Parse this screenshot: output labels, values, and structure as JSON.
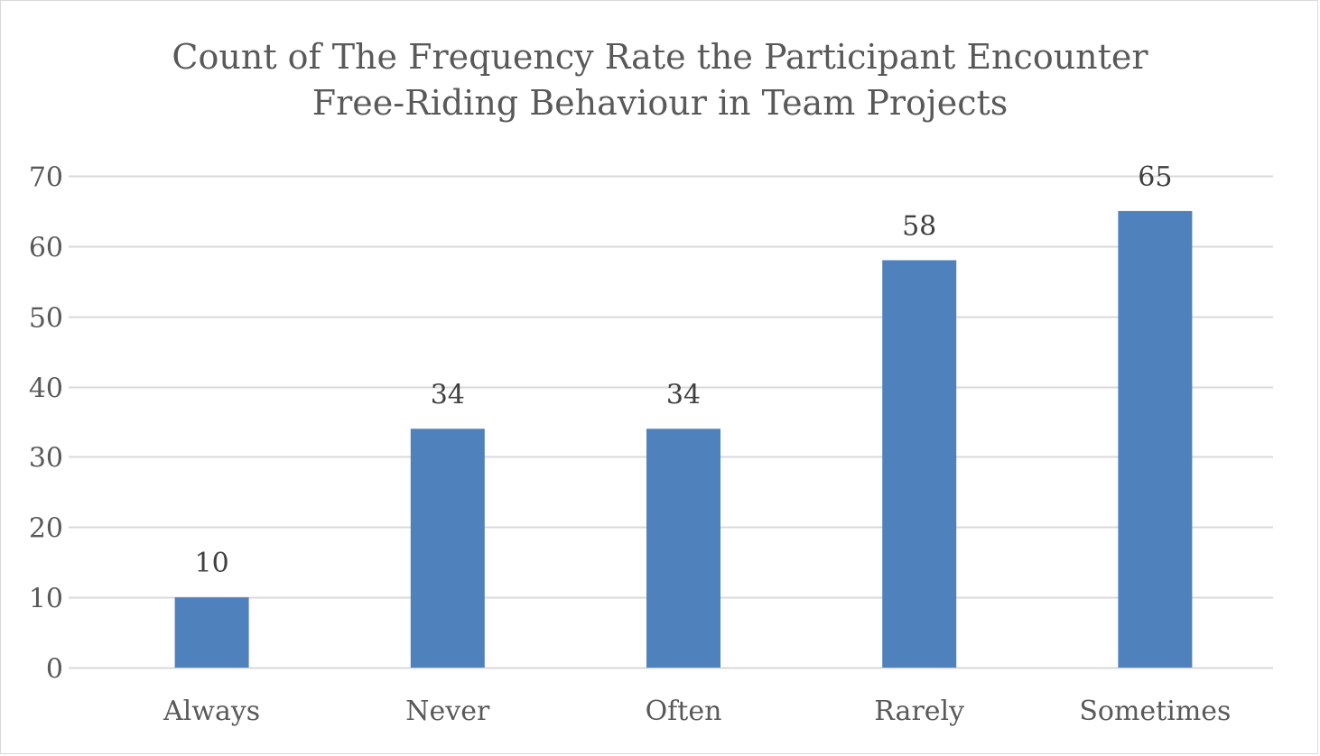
{
  "chart_data": {
    "type": "bar",
    "title": "Count of The Frequency Rate the Participant Encounter Free-Riding Behaviour in Team Projects",
    "title_lines": [
      "Count of The Frequency Rate the Participant Encounter",
      "Free-Riding Behaviour in Team Projects"
    ],
    "categories": [
      "Always",
      "Never",
      "Often",
      "Rarely",
      "Sometimes"
    ],
    "values": [
      10,
      34,
      34,
      58,
      65
    ],
    "data_labels": [
      "10",
      "34",
      "34",
      "58",
      "65"
    ],
    "ylim": [
      0,
      70
    ],
    "y_ticks": [
      0,
      10,
      20,
      30,
      40,
      50,
      60,
      70
    ],
    "y_tick_labels": [
      "0",
      "10",
      "20",
      "30",
      "40",
      "50",
      "60",
      "70"
    ],
    "grid": true,
    "legend": "none",
    "xlabel": "",
    "ylabel": "",
    "colors": {
      "bar": "#4f81bd",
      "grid": "#d9d9d9",
      "axis_text": "#595959",
      "label_text": "#404040"
    }
  }
}
